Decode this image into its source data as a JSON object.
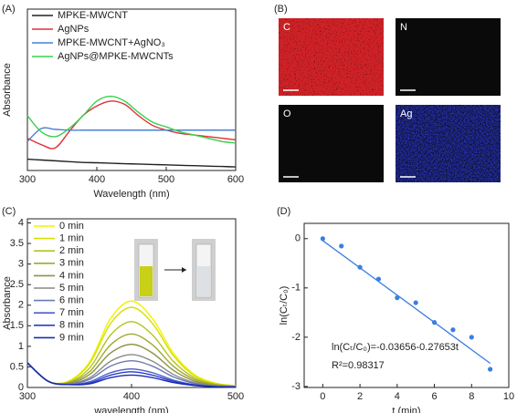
{
  "chart_data": [
    {
      "type": "line",
      "panel_label": "(A)",
      "x_label": "Wavelength (nm)",
      "y_label": "Absorbance",
      "xlim": [
        300,
        600
      ],
      "xticks": [
        300,
        400,
        500,
        600
      ],
      "ylim": [
        0,
        1
      ],
      "x": [
        300,
        320,
        340,
        360,
        380,
        400,
        420,
        440,
        460,
        480,
        500,
        520,
        540,
        560,
        580,
        600
      ],
      "series": [
        {
          "name": "MPKE-MWCNT",
          "color": "#222222",
          "values": [
            0.07,
            0.065,
            0.06,
            0.055,
            0.05,
            0.048,
            0.045,
            0.042,
            0.04,
            0.037,
            0.035,
            0.032,
            0.03,
            0.027,
            0.025,
            0.022
          ]
        },
        {
          "name": "AgNPs",
          "color": "#e0303a",
          "values": [
            0.2,
            0.16,
            0.14,
            0.24,
            0.34,
            0.4,
            0.43,
            0.41,
            0.34,
            0.28,
            0.25,
            0.23,
            0.22,
            0.21,
            0.2,
            0.19
          ]
        },
        {
          "name": "MPKE-MWCNT+AgNO₃",
          "color": "#4a7fd4",
          "values": [
            0.18,
            0.26,
            0.255,
            0.25,
            0.25,
            0.25,
            0.25,
            0.25,
            0.25,
            0.25,
            0.25,
            0.25,
            0.25,
            0.25,
            0.25,
            0.25
          ]
        },
        {
          "name": "AgNPs@MPKE-MWCNTs",
          "color": "#3ad04a",
          "values": [
            0.34,
            0.24,
            0.21,
            0.26,
            0.34,
            0.43,
            0.46,
            0.43,
            0.36,
            0.3,
            0.27,
            0.24,
            0.22,
            0.2,
            0.18,
            0.17
          ]
        }
      ]
    },
    {
      "type": "image",
      "panel_label": "(B)",
      "maps": [
        "C",
        "N",
        "O",
        "Ag"
      ],
      "map_colors": [
        "#d02028",
        "#2f6a30",
        "#6a2030",
        "#2a3ae0"
      ]
    },
    {
      "type": "line",
      "panel_label": "(C)",
      "x_label": "wavelength (nm)",
      "y_label": "Absorbance",
      "xlim": [
        300,
        500
      ],
      "xticks": [
        300,
        400,
        500
      ],
      "ylim": [
        0,
        4.1
      ],
      "yticks": [
        0,
        0.5,
        1,
        1.5,
        2,
        2.5,
        3,
        3.5,
        4
      ],
      "x": [
        300,
        320,
        340,
        360,
        380,
        400,
        420,
        440,
        460,
        480,
        500
      ],
      "series": [
        {
          "name": "0 min",
          "color": "#f2f200",
          "values": [
            0.6,
            0.15,
            0.16,
            0.63,
            1.68,
            2.1,
            1.68,
            0.84,
            0.32,
            0.11,
            0.04
          ]
        },
        {
          "name": "1 min",
          "color": "#d6e000",
          "values": [
            0.6,
            0.15,
            0.15,
            0.59,
            1.56,
            1.95,
            1.56,
            0.78,
            0.29,
            0.1,
            0.04
          ]
        },
        {
          "name": "2 min",
          "color": "#b4c41c",
          "values": [
            0.6,
            0.15,
            0.13,
            0.48,
            1.28,
            1.6,
            1.28,
            0.64,
            0.24,
            0.08,
            0.03
          ]
        },
        {
          "name": "3 min",
          "color": "#a0a830",
          "values": [
            0.6,
            0.15,
            0.12,
            0.39,
            1.04,
            1.3,
            1.04,
            0.52,
            0.2,
            0.07,
            0.03
          ]
        },
        {
          "name": "4 min",
          "color": "#8c9440",
          "values": [
            0.6,
            0.15,
            0.1,
            0.32,
            0.84,
            1.05,
            0.84,
            0.42,
            0.16,
            0.05,
            0.02
          ]
        },
        {
          "name": "5 min",
          "color": "#8a8a8a",
          "values": [
            0.6,
            0.15,
            0.09,
            0.24,
            0.64,
            0.8,
            0.64,
            0.32,
            0.12,
            0.04,
            0.02
          ]
        },
        {
          "name": "6 min",
          "color": "#6a7ab0",
          "values": [
            0.6,
            0.15,
            0.08,
            0.2,
            0.52,
            0.65,
            0.52,
            0.26,
            0.1,
            0.03,
            0.01
          ]
        },
        {
          "name": "7 min",
          "color": "#4a5cc8",
          "values": [
            0.6,
            0.15,
            0.07,
            0.14,
            0.36,
            0.45,
            0.36,
            0.18,
            0.07,
            0.02,
            0.01
          ]
        },
        {
          "name": "8 min",
          "color": "#2a3cc8",
          "values": [
            0.6,
            0.15,
            0.07,
            0.11,
            0.3,
            0.38,
            0.3,
            0.15,
            0.06,
            0.02,
            0.01
          ]
        },
        {
          "name": "9 min",
          "color": "#1a2ab0",
          "values": [
            0.6,
            0.15,
            0.07,
            0.09,
            0.24,
            0.3,
            0.24,
            0.12,
            0.05,
            0.02,
            0.01
          ]
        }
      ]
    },
    {
      "type": "scatter",
      "panel_label": "(D)",
      "x_label": "t (min)",
      "y_label": "ln(Cₜ/C₀)",
      "xlim": [
        -1,
        10
      ],
      "xticks": [
        0,
        2,
        4,
        6,
        8,
        10
      ],
      "ylim": [
        -3.02,
        0.31
      ],
      "yticks": [
        0,
        -1,
        -2,
        -3
      ],
      "color": "#3a7ee0",
      "x": [
        0,
        1,
        2,
        3,
        4,
        5,
        6,
        7,
        8,
        9
      ],
      "values": [
        0,
        -0.15,
        -0.58,
        -0.82,
        -1.2,
        -1.3,
        -1.7,
        -1.85,
        -2.0,
        -2.65
      ],
      "fit": {
        "x": [
          0,
          9
        ],
        "values": [
          -0.04,
          -2.53
        ]
      },
      "annotations": [
        "ln(Cₜ/C₀)=-0.03656-0.27653t",
        "R²=0.98317"
      ]
    }
  ]
}
